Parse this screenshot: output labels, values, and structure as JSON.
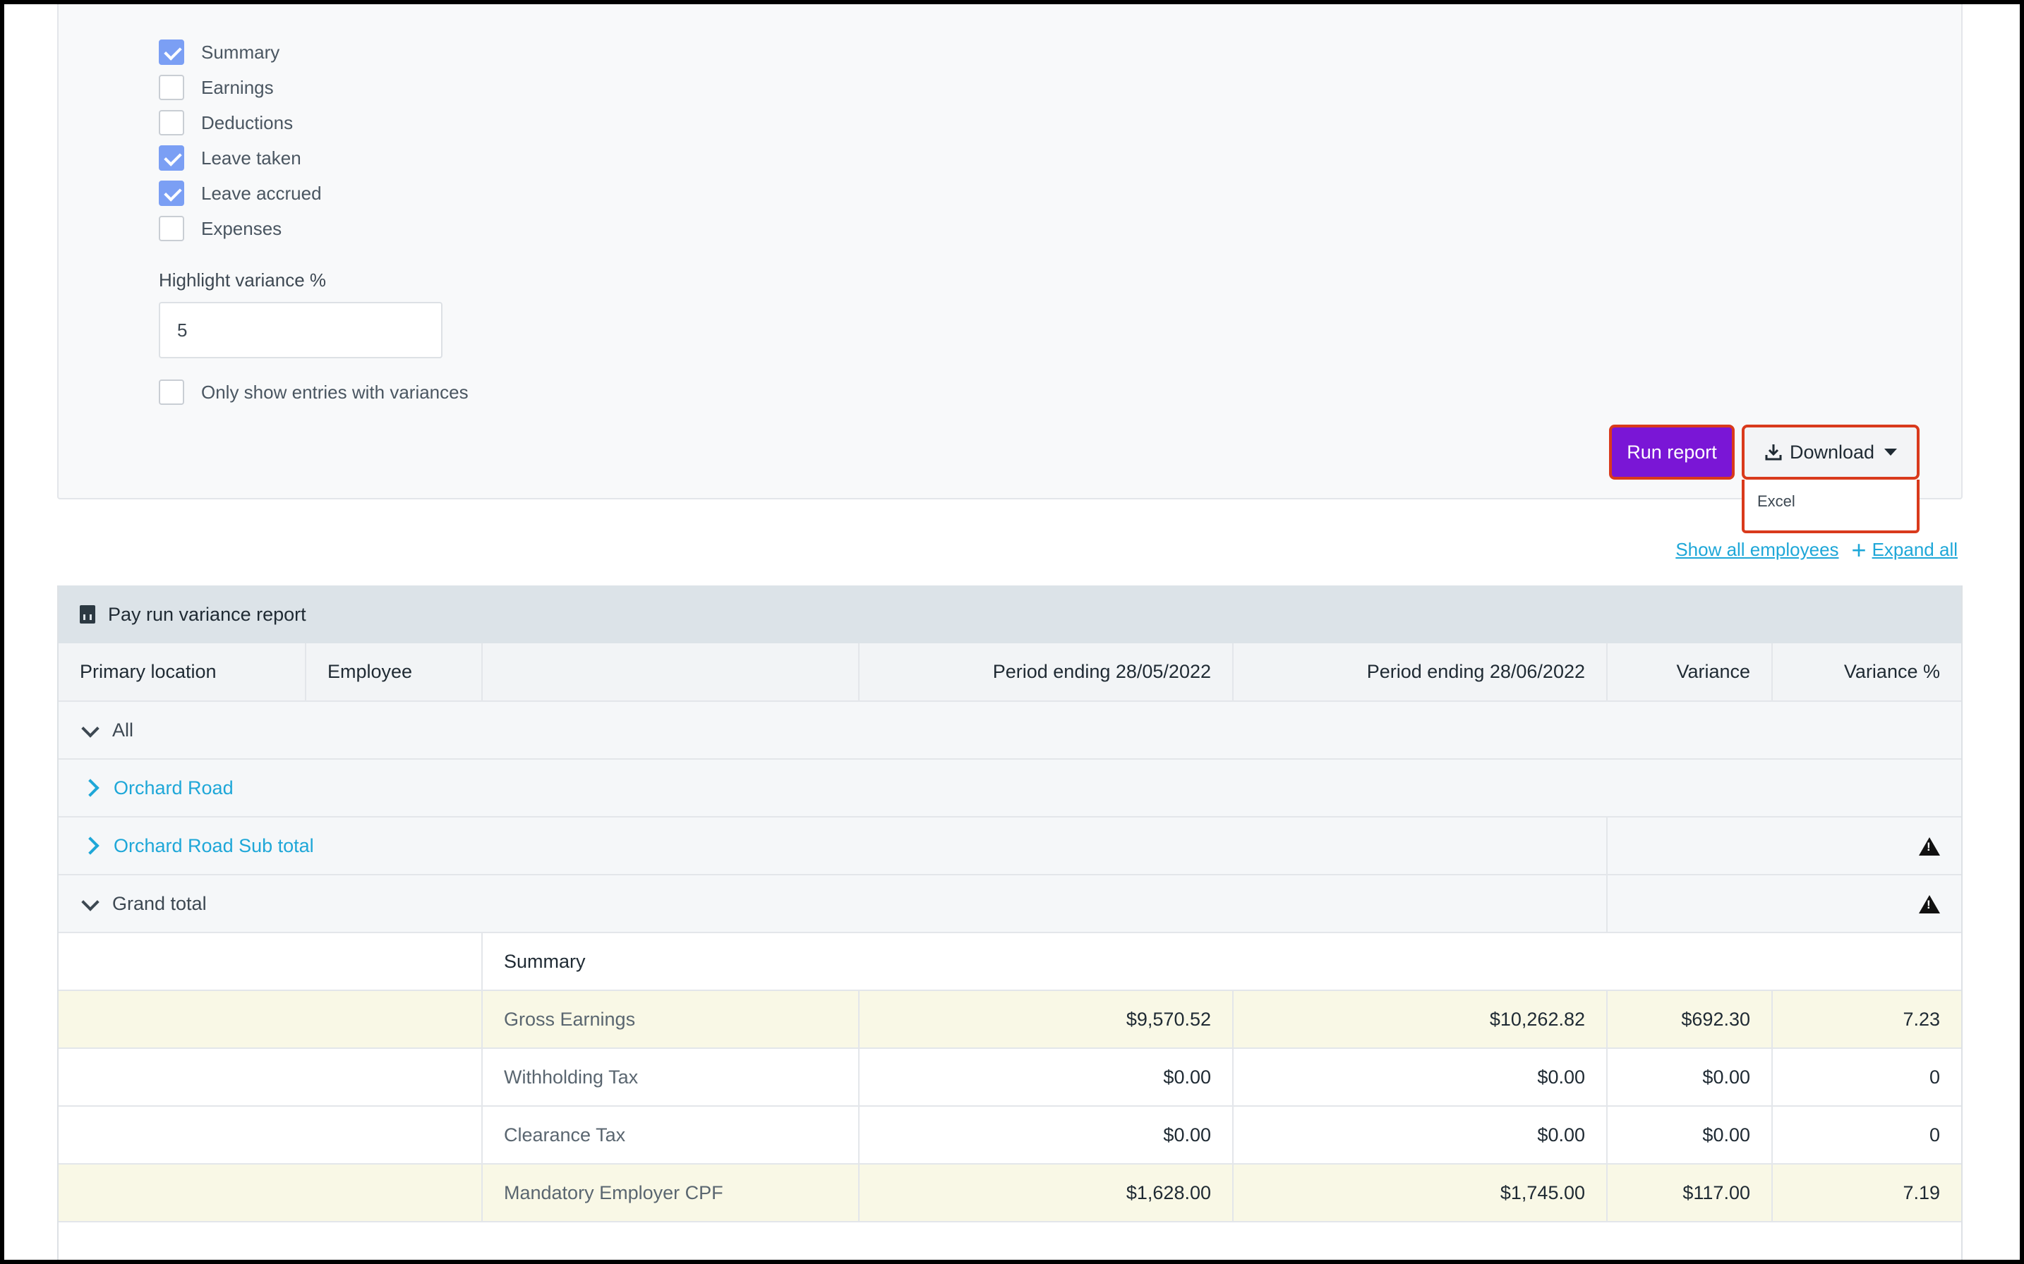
{
  "filters": {
    "checkboxes": [
      {
        "label": "Summary",
        "checked": true
      },
      {
        "label": "Earnings",
        "checked": false
      },
      {
        "label": "Deductions",
        "checked": false
      },
      {
        "label": "Leave taken",
        "checked": true
      },
      {
        "label": "Leave accrued",
        "checked": true
      },
      {
        "label": "Expenses",
        "checked": false
      }
    ],
    "variance_label": "Highlight variance %",
    "variance_value": "5",
    "only_variances_label": "Only show entries with variances",
    "only_variances_checked": false
  },
  "actions": {
    "run_report_label": "Run report",
    "download_label": "Download",
    "download_options": [
      "Excel"
    ]
  },
  "links": {
    "show_all_employees": "Show all employees",
    "expand_all": "Expand all"
  },
  "report": {
    "title": "Pay run variance report",
    "columns": [
      "Primary location",
      "Employee",
      "",
      "Period ending 28/05/2022",
      "Period ending 28/06/2022",
      "Variance",
      "Variance %"
    ],
    "groups": {
      "all": "All",
      "orchard_road": "Orchard Road",
      "orchard_sub_total": "Orchard Road Sub total",
      "grand_total": "Grand total"
    },
    "summary_label": "Summary",
    "rows": [
      {
        "label": "Gross Earnings",
        "p1": "$9,570.52",
        "p2": "$10,262.82",
        "variance": "$692.30",
        "variance_pct": "7.23",
        "highlight": true
      },
      {
        "label": "Withholding Tax",
        "p1": "$0.00",
        "p2": "$0.00",
        "variance": "$0.00",
        "variance_pct": "0",
        "highlight": false
      },
      {
        "label": "Clearance Tax",
        "p1": "$0.00",
        "p2": "$0.00",
        "variance": "$0.00",
        "variance_pct": "0",
        "highlight": false
      },
      {
        "label": "Mandatory Employer CPF",
        "p1": "$1,628.00",
        "p2": "$1,745.00",
        "variance": "$117.00",
        "variance_pct": "7.19",
        "highlight": true
      }
    ]
  },
  "colors": {
    "primary_button": "#7a16d6",
    "link": "#1ea7d8",
    "highlight_row": "#f9f8e6",
    "checkbox_checked": "#7b9ff4"
  }
}
